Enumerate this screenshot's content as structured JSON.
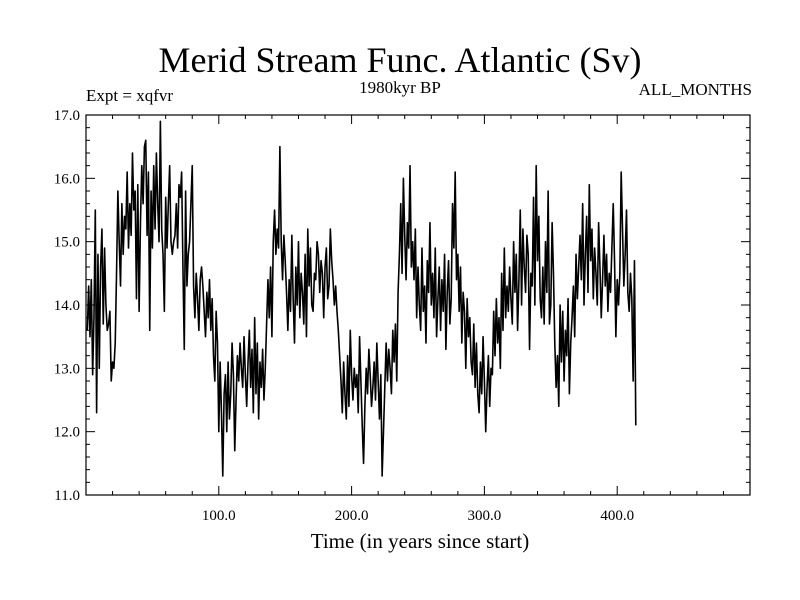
{
  "chart_data": {
    "type": "line",
    "title": "Merid Stream Func. Atlantic (Sv)",
    "subtitle": "1980kyr BP",
    "experiment_label": "Expt = xqfvr",
    "period_label": "ALL_MONTHS",
    "xlabel": "Time (in years since start)",
    "ylabel": "",
    "xlim": [
      0,
      500
    ],
    "ylim": [
      11.0,
      17.0
    ],
    "x_ticks": [
      100,
      200,
      300,
      400
    ],
    "x_tick_labels": [
      "100.0",
      "200.0",
      "300.0",
      "400.0"
    ],
    "y_ticks": [
      11,
      12,
      13,
      14,
      15,
      16,
      17
    ],
    "y_tick_labels": [
      "11.0",
      "12.0",
      "13.0",
      "14.0",
      "15.0",
      "16.0",
      "17.0"
    ],
    "grid": false,
    "series": [
      {
        "name": "Merid Stream Func. Atlantic",
        "x_start": 1,
        "x_step": 1,
        "values": [
          13.6,
          14.3,
          13.5,
          14.4,
          12.9,
          13.8,
          15.5,
          12.3,
          14.8,
          13.0,
          14.6,
          15.2,
          13.7,
          14.9,
          14.0,
          13.6,
          13.7,
          13.9,
          12.8,
          13.1,
          13.0,
          13.4,
          14.5,
          15.8,
          15.0,
          14.3,
          15.6,
          14.8,
          15.4,
          15.2,
          16.1,
          14.9,
          15.6,
          15.1,
          16.4,
          15.5,
          15.8,
          14.1,
          15.9,
          13.9,
          15.3,
          16.2,
          15.6,
          16.5,
          16.6,
          15.1,
          16.1,
          13.6,
          15.8,
          14.9,
          16.2,
          15.2,
          16.4,
          15.6,
          15.0,
          16.9,
          15.2,
          14.8,
          13.9,
          15.7,
          14.9,
          15.6,
          16.2,
          15.0,
          14.8,
          15.0,
          15.1,
          15.6,
          14.9,
          15.9,
          15.7,
          16.1,
          14.6,
          13.3,
          15.8,
          14.3,
          14.8,
          15.0,
          15.6,
          16.2,
          14.3,
          13.8,
          14.5,
          14.1,
          13.6,
          14.4,
          14.6,
          14.3,
          13.9,
          13.5,
          14.2,
          13.8,
          14.4,
          13.6,
          14.1,
          13.2,
          12.8,
          13.9,
          13.4,
          12.0,
          13.1,
          12.3,
          11.3,
          12.6,
          12.9,
          12.0,
          13.1,
          12.2,
          12.6,
          13.4,
          12.9,
          11.7,
          12.5,
          13.2,
          12.8,
          13.4,
          13.0,
          12.7,
          13.5,
          12.9,
          12.4,
          13.1,
          13.6,
          12.7,
          13.3,
          12.3,
          13.8,
          12.6,
          13.4,
          12.2,
          13.1,
          12.7,
          13.3,
          12.5,
          13.0,
          13.7,
          14.4,
          13.8,
          14.6,
          13.5,
          15.0,
          15.5,
          14.8,
          15.2,
          14.9,
          16.5,
          15.0,
          14.4,
          15.1,
          14.7,
          14.2,
          13.6,
          14.4,
          13.9,
          15.1,
          14.1,
          13.4,
          14.6,
          14.0,
          15.0,
          13.8,
          14.5,
          14.2,
          13.7,
          14.8,
          13.5,
          15.2,
          14.3,
          14.9,
          14.0,
          13.9,
          14.5,
          14.4,
          15.0,
          14.8,
          14.2,
          14.7,
          14.5,
          13.8,
          14.6,
          14.9,
          14.1,
          14.3,
          15.2,
          14.7,
          14.4,
          14.0,
          14.3,
          13.9,
          13.6,
          13.2,
          12.8,
          12.3,
          13.1,
          12.6,
          12.2,
          13.2,
          12.4,
          13.6,
          12.9,
          12.5,
          13.0,
          12.7,
          12.9,
          12.3,
          13.5,
          12.8,
          12.1,
          11.5,
          12.4,
          13.0,
          12.6,
          13.3,
          12.9,
          12.4,
          12.7,
          13.1,
          12.5,
          13.4,
          12.8,
          12.2,
          12.9,
          11.3,
          12.0,
          12.7,
          13.4,
          12.8,
          13.3,
          13.0,
          12.6,
          13.6,
          13.1,
          13.7,
          12.8,
          14.2,
          14.8,
          15.6,
          14.5,
          16.0,
          15.1,
          14.4,
          15.3,
          14.9,
          16.2,
          14.6,
          15.0,
          14.4,
          15.2,
          13.8,
          14.6,
          14.0,
          13.6,
          14.9,
          13.9,
          14.3,
          13.4,
          14.7,
          14.2,
          15.3,
          14.0,
          14.5,
          13.8,
          14.9,
          13.5,
          14.1,
          14.6,
          13.6,
          14.4,
          13.9,
          14.8,
          13.3,
          14.2,
          14.7,
          13.7,
          14.1,
          15.6,
          14.9,
          16.1,
          14.4,
          14.8,
          13.9,
          14.6,
          13.4,
          14.2,
          13.9,
          13.0,
          14.1,
          13.5,
          13.8,
          13.1,
          12.9,
          13.7,
          12.7,
          13.4,
          12.6,
          12.3,
          13.1,
          12.6,
          13.5,
          12.8,
          12.0,
          12.7,
          13.2,
          12.4,
          13.0,
          12.9,
          13.9,
          13.2,
          14.1,
          13.4,
          13.8,
          13.0,
          14.5,
          13.6,
          14.9,
          13.8,
          14.3,
          13.9,
          14.6,
          14.1,
          13.7,
          15.0,
          14.2,
          14.8,
          13.6,
          14.4,
          15.5,
          14.0,
          15.2,
          14.6,
          14.2,
          15.1,
          14.8,
          13.3,
          14.5,
          14.3,
          15.7,
          14.0,
          16.2,
          14.7,
          15.4,
          14.1,
          13.8,
          14.6,
          13.7,
          15.0,
          14.2,
          15.8,
          13.7,
          14.0,
          15.3,
          14.5,
          13.4,
          12.7,
          13.2,
          12.4,
          14.0,
          13.1,
          13.9,
          12.8,
          13.6,
          13.2,
          14.1,
          12.6,
          13.4,
          13.8,
          14.3,
          13.5,
          14.8,
          14.1,
          14.6,
          15.1,
          14.4,
          15.6,
          14.0,
          14.8,
          15.4,
          14.2,
          15.9,
          14.7,
          15.2,
          14.1,
          14.9,
          14.5,
          14.0,
          15.3,
          14.6,
          13.8,
          14.4,
          15.1,
          14.3,
          14.8,
          13.9,
          14.5,
          14.2,
          14.9,
          15.6,
          14.7,
          13.5,
          14.4,
          14.0,
          14.5,
          16.1,
          15.2,
          14.3,
          14.8,
          15.5,
          14.2,
          13.9,
          14.5,
          14.1,
          12.8,
          14.7,
          12.1
        ]
      }
    ]
  }
}
